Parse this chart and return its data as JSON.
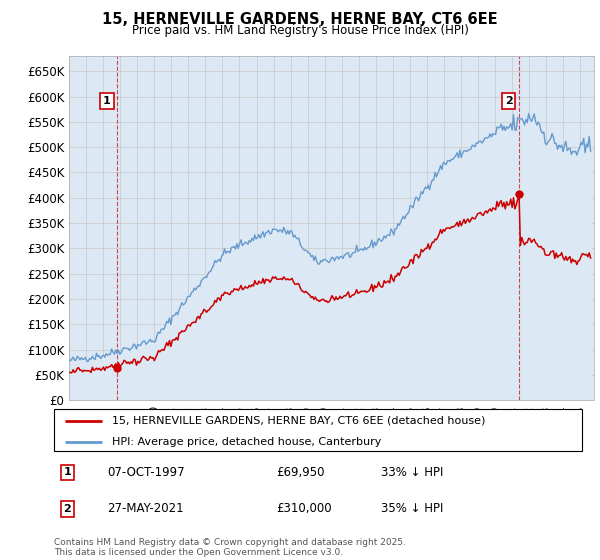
{
  "title": "15, HERNEVILLE GARDENS, HERNE BAY, CT6 6EE",
  "subtitle": "Price paid vs. HM Land Registry's House Price Index (HPI)",
  "legend_line1": "15, HERNEVILLE GARDENS, HERNE BAY, CT6 6EE (detached house)",
  "legend_line2": "HPI: Average price, detached house, Canterbury",
  "annotation1_label": "1",
  "annotation1_date": "07-OCT-1997",
  "annotation1_price": "£69,950",
  "annotation1_hpi": "33% ↓ HPI",
  "annotation2_label": "2",
  "annotation2_date": "27-MAY-2021",
  "annotation2_price": "£310,000",
  "annotation2_hpi": "35% ↓ HPI",
  "footer": "Contains HM Land Registry data © Crown copyright and database right 2025.\nThis data is licensed under the Open Government Licence v3.0.",
  "ylim_min": 0,
  "ylim_max": 680000,
  "ytick_step": 50000,
  "red_color": "#cc0000",
  "blue_color": "#6699cc",
  "blue_fill_color": "#dce9f5",
  "background_color": "#ffffff",
  "grid_color": "#cccccc",
  "price1": 69950,
  "price2": 310000,
  "year1": 1997.77,
  "year2": 2021.4
}
